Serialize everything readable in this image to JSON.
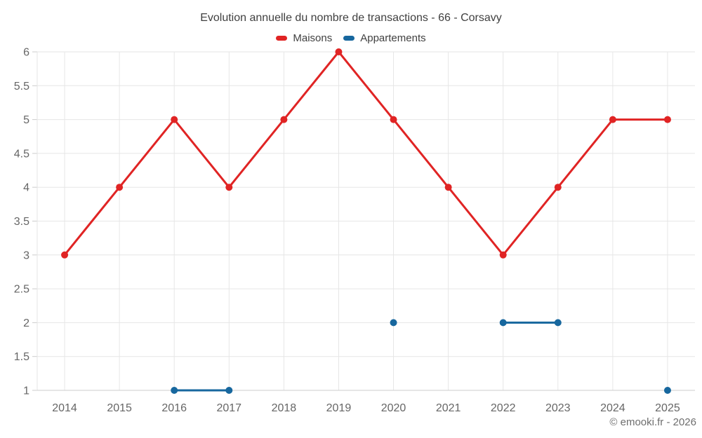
{
  "copyright": "© emooki.fr - 2026",
  "chart_data": {
    "type": "line",
    "title": "Evolution annuelle du nombre de transactions - 66 - Corsavy",
    "categories": [
      "2014",
      "2015",
      "2016",
      "2017",
      "2018",
      "2019",
      "2020",
      "2021",
      "2022",
      "2023",
      "2024",
      "2025"
    ],
    "series": [
      {
        "name": "Maisons",
        "color": "#e02424",
        "values": [
          3,
          4,
          5,
          4,
          5,
          6,
          5,
          4,
          3,
          4,
          5,
          5
        ]
      },
      {
        "name": "Appartements",
        "color": "#17679e",
        "values": [
          null,
          null,
          1,
          1,
          null,
          null,
          2,
          null,
          2,
          2,
          null,
          1
        ]
      }
    ],
    "xlabel": "",
    "ylabel": "",
    "ylim": [
      1,
      6
    ],
    "yticks": [
      1,
      1.5,
      2,
      2.5,
      3,
      3.5,
      4,
      4.5,
      5,
      5.5,
      6
    ],
    "grid": true,
    "legend_position": "top",
    "grid_color": "#e6e6e6",
    "axis_line_color": "#cccccc",
    "axis_label_color": "#666666"
  }
}
